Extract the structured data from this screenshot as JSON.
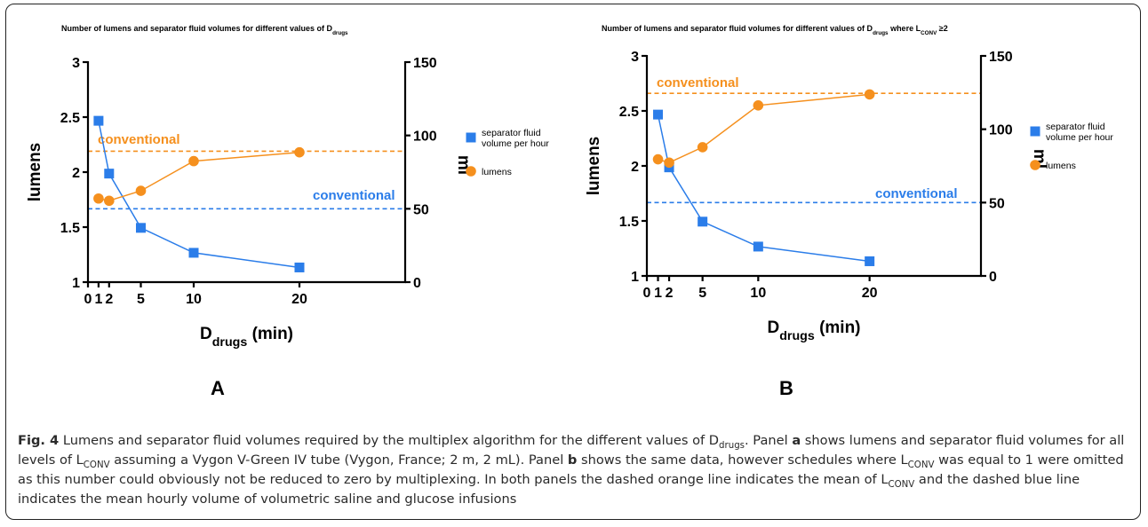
{
  "chart_data": [
    {
      "type": "line",
      "panel_label": "A",
      "title": {
        "main": "Number of lumens and separator fluid volumes for different values of D",
        "sub": "drugs",
        "tail": ""
      },
      "xlabel": {
        "main": "D",
        "sub": "drugs",
        "tail": " (min)"
      },
      "ylabel_left": "lumens",
      "ylabel_right": "ml",
      "x_ticks": [
        "0",
        "1",
        "2",
        "5",
        "10",
        "20"
      ],
      "x_tick_values": [
        0,
        1,
        2,
        5,
        10,
        20
      ],
      "xlim": [
        0,
        30
      ],
      "ylim_left": [
        1,
        3
      ],
      "y_ticks_left": [
        "1",
        "1.5",
        "2",
        "2.5",
        "3"
      ],
      "y_tick_values_left": [
        1,
        1.5,
        2,
        2.5,
        3
      ],
      "ylim_right": [
        0,
        150
      ],
      "y_ticks_right": [
        "0",
        "50",
        "100",
        "150"
      ],
      "y_tick_values_right": [
        0,
        50,
        100,
        150
      ],
      "series": [
        {
          "name": "separator fluid volume per hour",
          "axis": "right",
          "marker": "square",
          "color": "#2b7de9",
          "x": [
            1,
            2,
            5,
            10,
            20
          ],
          "y": [
            110,
            74,
            37,
            20,
            10
          ]
        },
        {
          "name": "lumens",
          "axis": "left",
          "marker": "circle",
          "color": "#f5901e",
          "x": [
            1,
            2,
            5,
            10,
            20
          ],
          "y": [
            1.76,
            1.74,
            1.83,
            2.1,
            2.18
          ]
        }
      ],
      "reference_lines": [
        {
          "label": "conventional",
          "axis": "left",
          "value": 2.19,
          "color": "#f5901e"
        },
        {
          "label": "conventional",
          "axis": "right",
          "value": 50,
          "color": "#2b7de9"
        }
      ],
      "legend_position": "right"
    },
    {
      "type": "line",
      "panel_label": "B",
      "title": {
        "main": "Number of lumens and separator fluid volumes for different values of D",
        "sub": "drugs",
        "tail": " where L",
        "sub2": "CONV",
        "tail2": " ≥2"
      },
      "xlabel": {
        "main": "D",
        "sub": "drugs",
        "tail": " (min)"
      },
      "ylabel_left": "lumens",
      "ylabel_right": "ml",
      "x_ticks": [
        "0",
        "1",
        "2",
        "5",
        "10",
        "20"
      ],
      "x_tick_values": [
        0,
        1,
        2,
        5,
        10,
        20
      ],
      "xlim": [
        0,
        30
      ],
      "ylim_left": [
        1,
        3
      ],
      "y_ticks_left": [
        "1",
        "1.5",
        "2",
        "2.5",
        "3"
      ],
      "y_tick_values_left": [
        1,
        1.5,
        2,
        2.5,
        3
      ],
      "ylim_right": [
        0,
        150
      ],
      "y_ticks_right": [
        "0",
        "50",
        "100",
        "150"
      ],
      "y_tick_values_right": [
        0,
        50,
        100,
        150
      ],
      "series": [
        {
          "name": "separator fluid volume per hour",
          "axis": "right",
          "marker": "square",
          "color": "#2b7de9",
          "x": [
            1,
            2,
            5,
            10,
            20
          ],
          "y": [
            110,
            74,
            37,
            20,
            10
          ]
        },
        {
          "name": "lumens",
          "axis": "left",
          "marker": "circle",
          "color": "#f5901e",
          "x": [
            1,
            2,
            5,
            10,
            20
          ],
          "y": [
            2.06,
            2.03,
            2.17,
            2.55,
            2.65
          ]
        }
      ],
      "reference_lines": [
        {
          "label": "conventional",
          "axis": "left",
          "value": 2.66,
          "color": "#f5901e"
        },
        {
          "label": "conventional",
          "axis": "right",
          "value": 50,
          "color": "#2b7de9"
        }
      ],
      "legend_position": "right"
    }
  ],
  "caption": {
    "fig_label": "Fig. 4",
    "segments": [
      {
        "t": " Lumens and separator fluid volumes required by the multiplex algorithm for the different values of D"
      },
      {
        "t": "drugs",
        "sub": true
      },
      {
        "t": ". Panel "
      },
      {
        "t": "a",
        "bold": true
      },
      {
        "t": " shows lumens and separator fluid volumes for all levels of L"
      },
      {
        "t": "CONV",
        "sub": true
      },
      {
        "t": " assuming a Vygon V-Green IV tube (Vygon, France; 2 m, 2 mL). Panel "
      },
      {
        "t": "b",
        "bold": true
      },
      {
        "t": " shows the same data, however schedules where L"
      },
      {
        "t": "CONV",
        "sub": true
      },
      {
        "t": " was equal to 1 were omitted as this number could obviously not be reduced to zero by multiplexing. In both panels the dashed orange line indicates the mean of L"
      },
      {
        "t": "CONV",
        "sub": true
      },
      {
        "t": " and the dashed blue line indicates the mean hourly volume of volumetric saline and glucose infusions"
      }
    ]
  }
}
